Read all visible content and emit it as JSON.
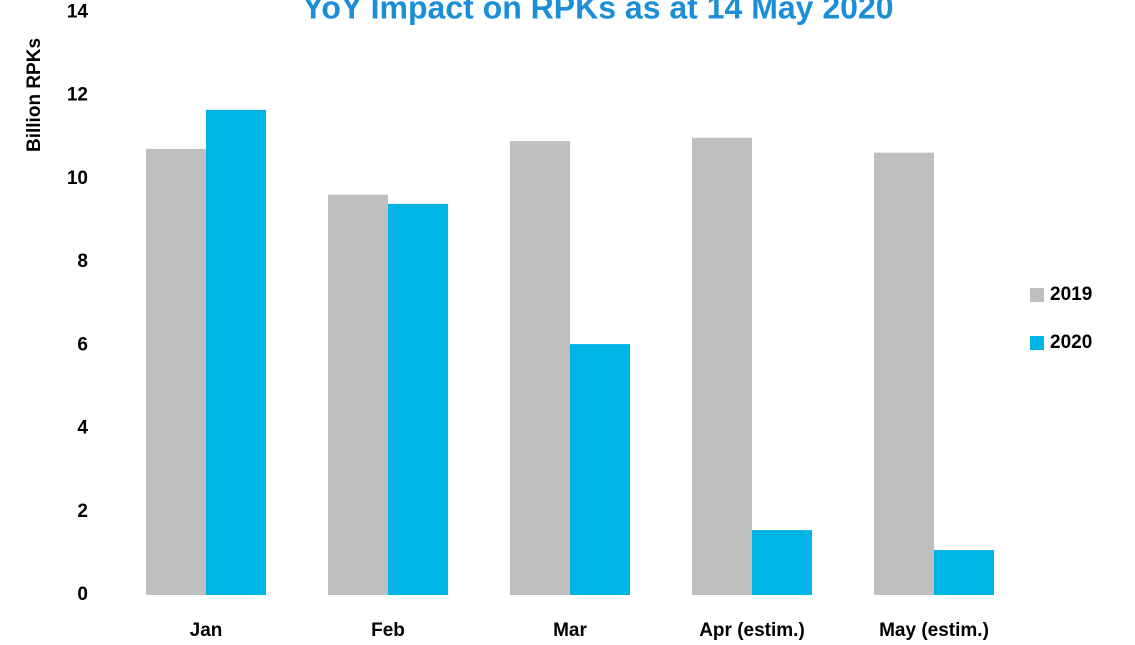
{
  "chart_data": {
    "type": "bar",
    "title": "YoY Impact on RPKs as at 14 May 2020",
    "y_label": "Billion RPKs",
    "categories": [
      "Jan",
      "Feb",
      "Mar",
      "Apr (estim.)",
      "May (estim.)"
    ],
    "series": [
      {
        "name": "2019",
        "color": "#bfbfbf",
        "values": [
          10.72,
          9.62,
          10.91,
          10.99,
          10.63
        ]
      },
      {
        "name": "2020",
        "color": "#00b4e6",
        "values": [
          11.66,
          9.4,
          6.03,
          1.56,
          1.08
        ]
      }
    ],
    "ylim": [
      0,
      14
    ],
    "yticks": [
      0,
      2,
      4,
      6,
      8,
      10,
      12,
      14
    ],
    "grid": false,
    "legend": "right"
  }
}
